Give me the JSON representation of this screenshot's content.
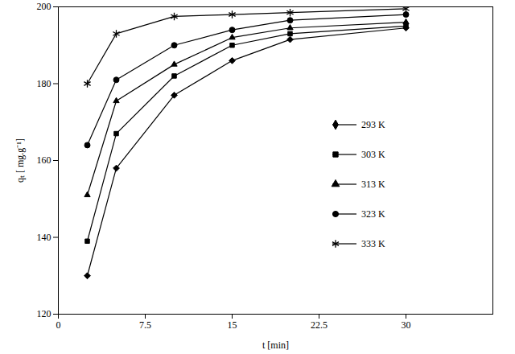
{
  "chart_data": {
    "type": "line",
    "x_label": "t [min]",
    "y_label": "qₜ [ mg.g⁻¹]",
    "x": [
      2.5,
      5,
      10,
      15,
      20,
      30
    ],
    "series": [
      {
        "name": "293 K",
        "color": "#000000",
        "marker": "diamond",
        "values": [
          130,
          158,
          177,
          186,
          191.5,
          194.5
        ]
      },
      {
        "name": "303 K",
        "color": "#000000",
        "marker": "square",
        "values": [
          139,
          167,
          182,
          190,
          193,
          195
        ]
      },
      {
        "name": "313 K",
        "color": "#000000",
        "marker": "triangle",
        "values": [
          151,
          175.5,
          185,
          192,
          194.5,
          196
        ]
      },
      {
        "name": "323 K",
        "color": "#000000",
        "marker": "circle",
        "values": [
          164,
          181,
          190,
          194,
          196.5,
          198
        ]
      },
      {
        "name": "333 K",
        "color": "#000000",
        "marker": "asterisk",
        "values": [
          180,
          193,
          197.5,
          198,
          198.5,
          199.5
        ]
      }
    ],
    "xlim": [
      0,
      37.5
    ],
    "xticks": [
      0,
      7.5,
      15,
      22.5,
      30
    ],
    "ylim": [
      120,
      200
    ],
    "yticks": [
      120,
      140,
      160,
      180,
      200
    ],
    "grid": false,
    "legend": "right"
  }
}
